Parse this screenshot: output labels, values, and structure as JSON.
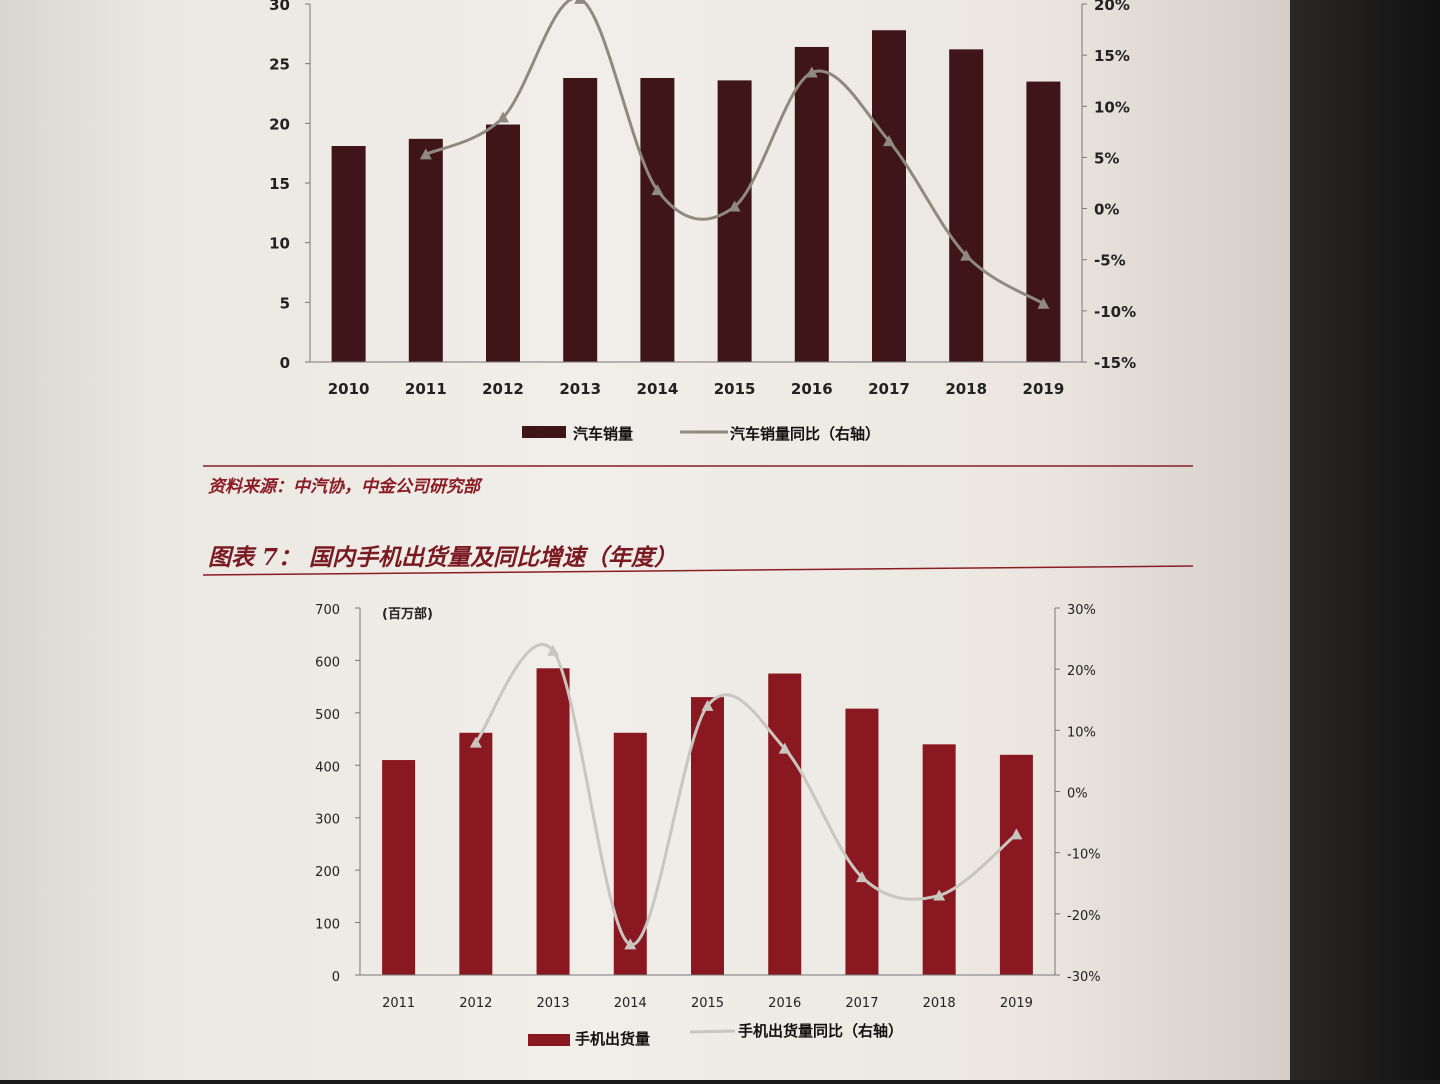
{
  "chart_data": [
    {
      "type": "bar",
      "title": "",
      "categories": [
        "2010",
        "2011",
        "2012",
        "2013",
        "2014",
        "2015",
        "2016",
        "2017",
        "2018",
        "2019"
      ],
      "series": [
        {
          "name": "汽车销量",
          "type": "bar",
          "axis": "left",
          "values": [
            18.1,
            18.7,
            19.9,
            23.8,
            23.8,
            23.6,
            26.4,
            27.8,
            26.2,
            23.5
          ]
        },
        {
          "name": "汽车销量同比（右轴）",
          "type": "line",
          "axis": "right",
          "values": [
            null,
            5.3,
            8.9,
            20.5,
            1.8,
            0.2,
            13.3,
            6.6,
            -4.6,
            -9.3
          ]
        }
      ],
      "y_left": {
        "min": 0,
        "max": 30,
        "ticks": [
          "0",
          "5",
          "10",
          "15",
          "20",
          "25",
          "30"
        ]
      },
      "y_right": {
        "min": -15,
        "max": 20,
        "ticks": [
          "-15%",
          "-10%",
          "-5%",
          "0%",
          "5%",
          "10%",
          "15%",
          "20%"
        ]
      },
      "colors": {
        "bar": "#3f1519",
        "line": "#8f8a80"
      },
      "legend_position": "bottom"
    },
    {
      "type": "bar",
      "title": "图表 7： 国内手机出货量及同比增速（年度）",
      "unit_label": "(百万部)",
      "categories": [
        "2011",
        "2012",
        "2013",
        "2014",
        "2015",
        "2016",
        "2017",
        "2018",
        "2019"
      ],
      "series": [
        {
          "name": "手机出货量",
          "type": "bar",
          "axis": "left",
          "values": [
            410,
            462,
            585,
            462,
            530,
            575,
            508,
            440,
            420
          ]
        },
        {
          "name": "手机出货量同比（右轴）",
          "type": "line",
          "axis": "right",
          "values": [
            null,
            8,
            23,
            -25,
            14,
            7,
            -14,
            -17,
            -7
          ]
        }
      ],
      "y_left": {
        "min": 0,
        "max": 700,
        "ticks": [
          "0",
          "100",
          "200",
          "300",
          "400",
          "500",
          "600",
          "700"
        ]
      },
      "y_right": {
        "min": -30,
        "max": 30,
        "ticks": [
          "-30%",
          "-20%",
          "-10%",
          "0%",
          "10%",
          "20%",
          "30%"
        ]
      },
      "colors": {
        "bar": "#8a1820",
        "line": "#c9c6c0"
      },
      "legend_position": "bottom"
    }
  ],
  "source_note": "资料来源：中汽协，中金公司研究部",
  "colors": {
    "rule": "#8a1d24"
  }
}
